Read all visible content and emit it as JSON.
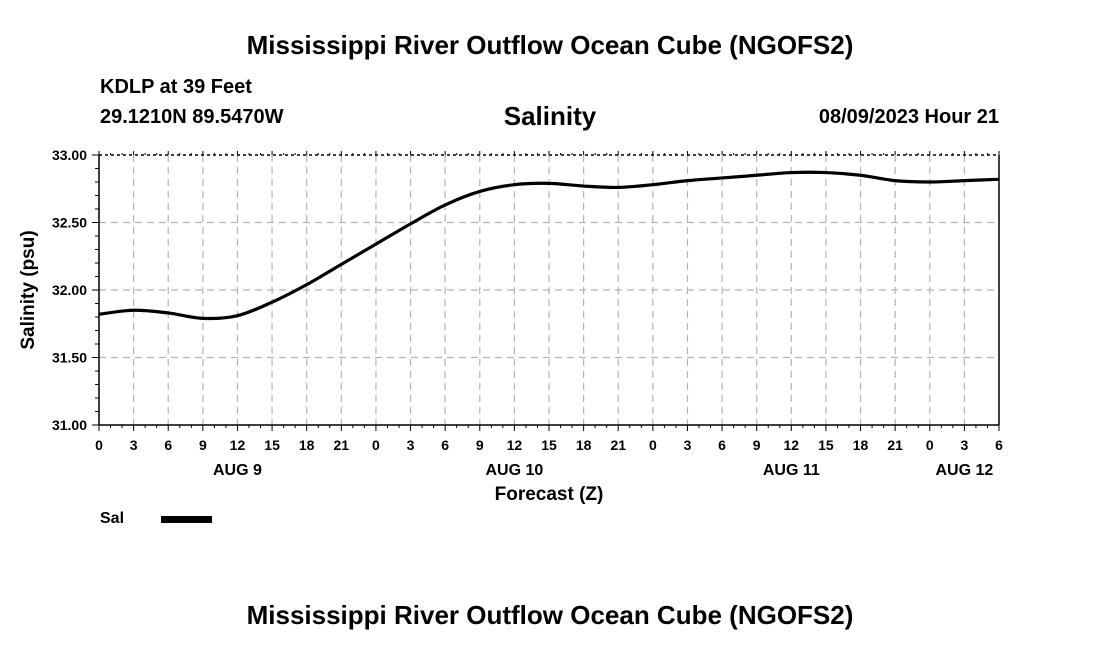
{
  "header": {
    "title": "Mississippi River Outflow Ocean Cube (NGOFS2)",
    "station": "KDLP at 39 Feet",
    "coords": "29.1210N  89.5470W",
    "variable": "Salinity",
    "datetime": "08/09/2023 Hour 21"
  },
  "footer": {
    "title": "Mississippi River Outflow Ocean Cube (NGOFS2)"
  },
  "legend": {
    "label": "Sal",
    "color": "#000000"
  },
  "chart_data": {
    "type": "line",
    "title": "Salinity",
    "xlabel": "Forecast (Z)",
    "ylabel": "Salinity (psu)",
    "ylim": [
      31.0,
      33.0
    ],
    "yticks": [
      "31.00",
      "31.50",
      "32.00",
      "32.50",
      "33.00"
    ],
    "xlim": [
      0,
      78
    ],
    "xtick_hours": [
      0,
      3,
      6,
      9,
      12,
      15,
      18,
      21,
      24,
      27,
      30,
      33,
      36,
      39,
      42,
      45,
      48,
      51,
      54,
      57,
      60,
      63,
      66,
      69,
      72,
      75,
      78
    ],
    "xtick_labels": [
      "0",
      "3",
      "6",
      "9",
      "12",
      "15",
      "18",
      "21",
      "0",
      "3",
      "6",
      "9",
      "12",
      "15",
      "18",
      "21",
      "0",
      "3",
      "6",
      "9",
      "12",
      "15",
      "18",
      "21",
      "0",
      "3",
      "6"
    ],
    "day_labels": [
      {
        "hour": 12,
        "label": "AUG 9"
      },
      {
        "hour": 36,
        "label": "AUG 10"
      },
      {
        "hour": 60,
        "label": "AUG 11"
      },
      {
        "hour": 75,
        "label": "AUG 12"
      }
    ],
    "grid": true,
    "series": [
      {
        "name": "Sal",
        "x": [
          0,
          3,
          6,
          9,
          12,
          15,
          18,
          21,
          24,
          27,
          30,
          33,
          36,
          39,
          42,
          45,
          48,
          51,
          54,
          57,
          60,
          63,
          66,
          69,
          72,
          75,
          78
        ],
        "values": [
          31.82,
          31.85,
          31.83,
          31.79,
          31.81,
          31.91,
          32.04,
          32.19,
          32.34,
          32.49,
          32.63,
          32.73,
          32.78,
          32.79,
          32.77,
          32.76,
          32.78,
          32.81,
          32.83,
          32.85,
          32.87,
          32.87,
          32.85,
          32.81,
          32.8,
          32.81,
          32.82
        ]
      }
    ]
  }
}
